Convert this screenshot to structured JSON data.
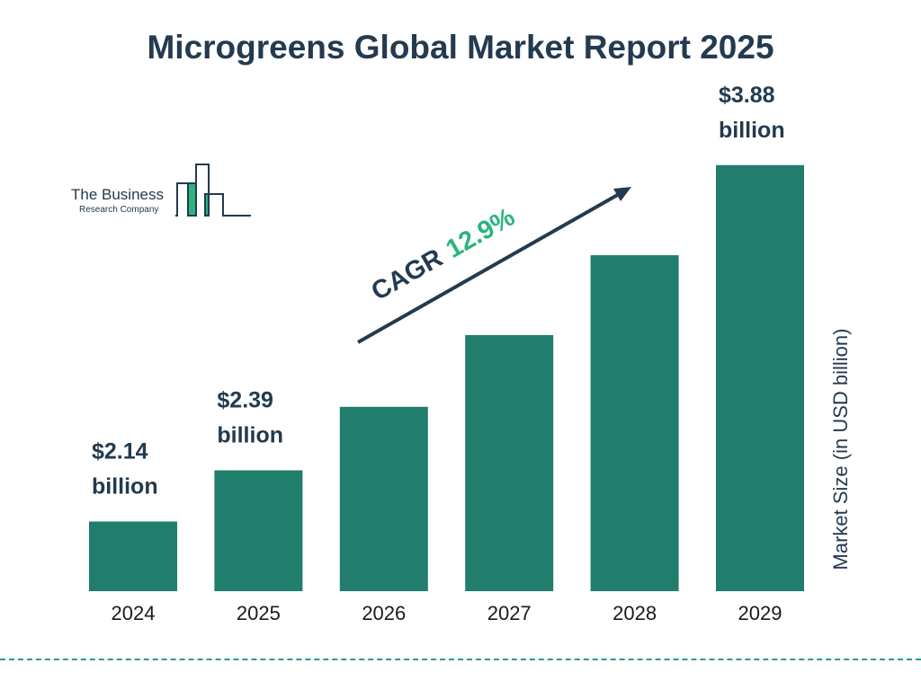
{
  "chart_data": {
    "type": "bar",
    "title": "Microgreens Global Market Report 2025",
    "ylabel": "Market Size (in USD billion)",
    "categories": [
      "2024",
      "2025",
      "2026",
      "2027",
      "2028",
      "2029"
    ],
    "values": [
      2.14,
      2.39,
      2.7,
      3.05,
      3.44,
      3.88
    ],
    "data_labels": [
      {
        "index": 0,
        "line1": "$2.14",
        "line2": "billion"
      },
      {
        "index": 1,
        "line1": "$2.39",
        "line2": "billion"
      },
      {
        "index": 5,
        "line1": "$3.88",
        "line2": "billion"
      }
    ],
    "annotation": {
      "prefix": "CAGR",
      "value": "12.9%"
    },
    "grid": false,
    "colors": {
      "bar": "#217d6c",
      "text": "#233a4f",
      "cagr": "#2bb47e",
      "dash": "#2a9d8f"
    }
  },
  "logo": {
    "line1": "The Business",
    "line2": "Research Company"
  }
}
